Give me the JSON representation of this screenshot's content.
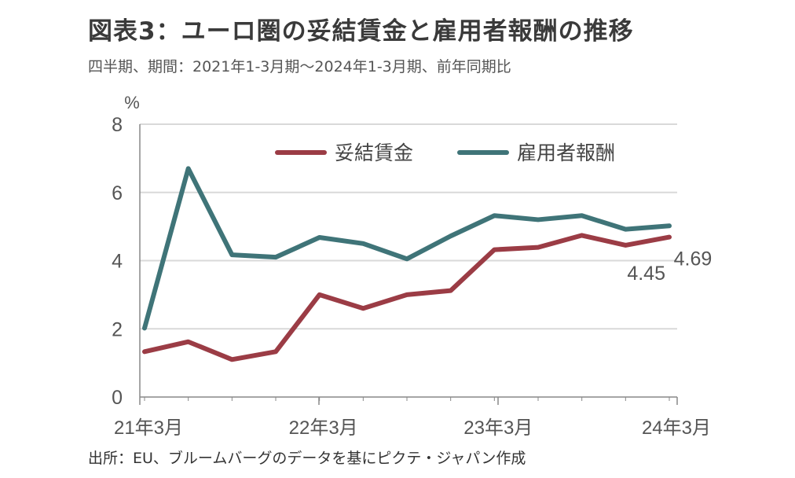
{
  "title": "図表3：ユーロ圏の妥結賃金と雇用者報酬の推移",
  "subtitle": "四半期、期間：2021年1-3月期～2024年1-3月期、前年同期比",
  "source": "出所：EU、ブルームバーグのデータを基にピクテ・ジャパン作成",
  "colors": {
    "negotiated": "#9b3c45",
    "compensation": "#3f7478",
    "grid": "#d9d9d9",
    "axis": "#888888"
  },
  "chart_data": {
    "type": "line",
    "ylabel": "%",
    "ylim": [
      0,
      8
    ],
    "yticks": [
      "0",
      "2",
      "4",
      "6",
      "8"
    ],
    "xtick_labels": [
      "21年3月",
      "22年3月",
      "23年3月",
      "24年3月"
    ],
    "xtick_index": [
      0,
      4,
      8,
      12
    ],
    "x": [
      "2021Q1",
      "2021Q2",
      "2021Q3",
      "2021Q4",
      "2022Q1",
      "2022Q2",
      "2022Q3",
      "2022Q4",
      "2023Q1",
      "2023Q2",
      "2023Q3",
      "2023Q4",
      "2024Q1"
    ],
    "legend_position": "top",
    "series": [
      {
        "name": "妥結賃金",
        "values": [
          1.33,
          1.62,
          1.1,
          1.33,
          3.0,
          2.6,
          3.0,
          3.12,
          4.32,
          4.39,
          4.74,
          4.45,
          4.69
        ]
      },
      {
        "name": "雇用者報酬",
        "values": [
          2.02,
          6.7,
          4.17,
          4.1,
          4.68,
          4.5,
          4.05,
          4.72,
          5.32,
          5.2,
          5.32,
          4.92,
          5.02
        ]
      }
    ],
    "annotations": [
      {
        "text": "4.45",
        "series": 0,
        "index": 11
      },
      {
        "text": "4.69",
        "series": 0,
        "index": 12
      }
    ]
  }
}
